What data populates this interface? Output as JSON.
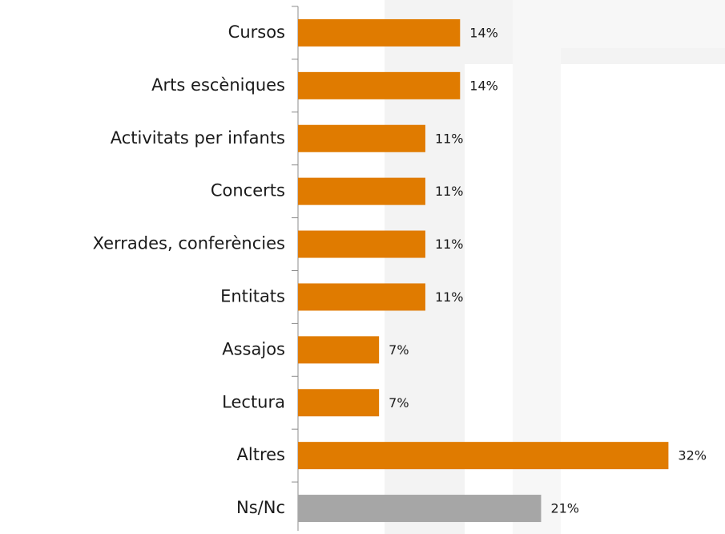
{
  "chart_data": {
    "type": "barh",
    "categories": [
      "Cursos",
      "Arts escèniques",
      "Activitats per infants",
      "Concerts",
      "Xerrades, conferències",
      "Entitats",
      "Assajos",
      "Lectura",
      "Altres",
      "Ns/Nc"
    ],
    "values": [
      14,
      14,
      11,
      11,
      11,
      11,
      7,
      7,
      32,
      21
    ],
    "value_labels": [
      "14%",
      "14%",
      "11%",
      "11%",
      "11%",
      "11%",
      "7%",
      "7%",
      "32%",
      "21%"
    ],
    "colors": [
      "#e07b00",
      "#e07b00",
      "#e07b00",
      "#e07b00",
      "#e07b00",
      "#e07b00",
      "#e07b00",
      "#e07b00",
      "#e07b00",
      "#a6a6a6"
    ]
  }
}
